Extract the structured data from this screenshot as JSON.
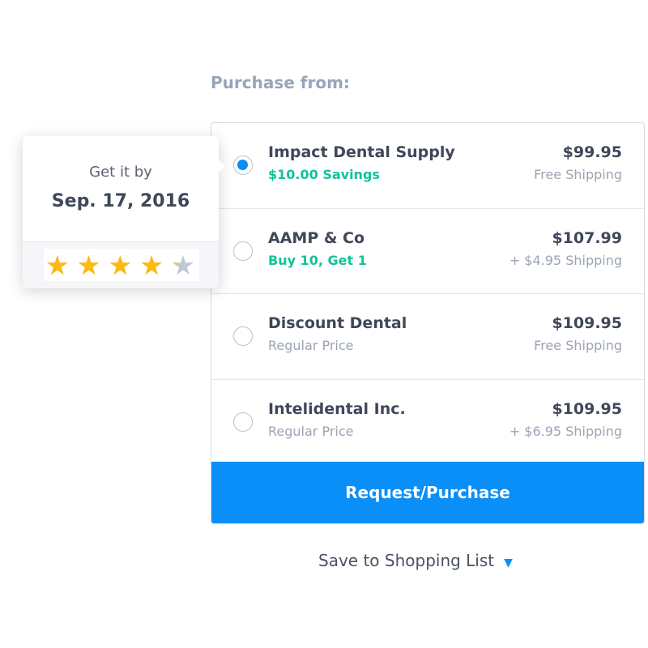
{
  "heading": "Purchase from:",
  "popup": {
    "get_it_by": "Get it by",
    "date": "Sep. 17, 2016",
    "rating": 4.2,
    "max_rating": 5
  },
  "vendors": [
    {
      "name": "Impact Dental Supply",
      "note": "$10.00 Savings",
      "note_highlight": true,
      "price": "$99.95",
      "shipping": "Free Shipping",
      "selected": true
    },
    {
      "name": "AAMP & Co",
      "note": "Buy 10, Get 1",
      "note_highlight": true,
      "price": "$107.99",
      "shipping": "+ $4.95 Shipping",
      "selected": false
    },
    {
      "name": "Discount Dental",
      "note": "Regular Price",
      "note_highlight": false,
      "price": "$109.95",
      "shipping": "Free Shipping",
      "selected": false
    },
    {
      "name": "Intelidental Inc.",
      "note": "Regular Price",
      "note_highlight": false,
      "price": "$109.95",
      "shipping": "+ $6.95 Shipping",
      "selected": false
    }
  ],
  "purchase_button": "Request/Purchase",
  "save_link": "Save to Shopping List",
  "colors": {
    "accent": "#0a8ef8",
    "savings": "#12c29a",
    "star": "#fdb813"
  }
}
